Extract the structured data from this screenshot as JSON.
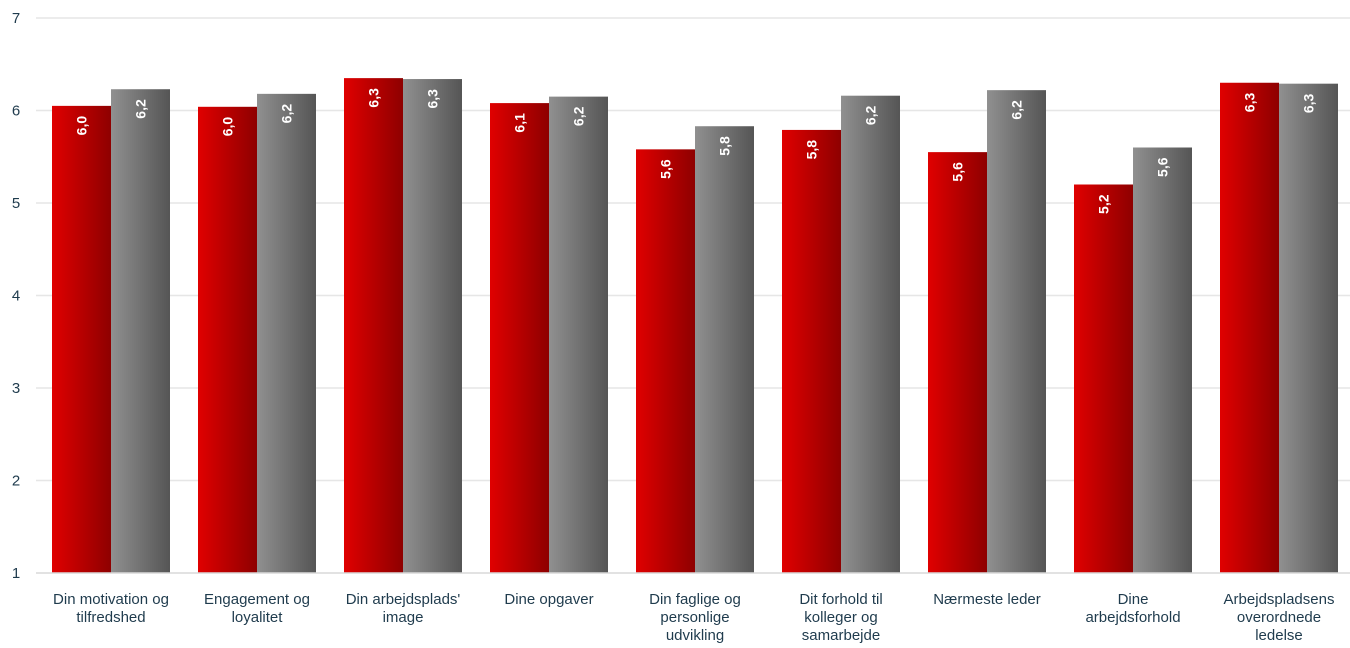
{
  "chart_data": {
    "type": "bar",
    "categories": [
      [
        "Din motivation og",
        "tilfredshed"
      ],
      [
        "Engagement og",
        "loyalitet"
      ],
      [
        "Din arbejdsplads'",
        "image"
      ],
      [
        "Dine opgaver"
      ],
      [
        "Din faglige og",
        "personlige",
        "udvikling"
      ],
      [
        "Dit forhold til",
        "kolleger og",
        "samarbejde"
      ],
      [
        "Nærmeste leder"
      ],
      [
        "Dine",
        "arbejdsforhold"
      ],
      [
        "Arbejdspladsens",
        "overordnede",
        "ledelse"
      ]
    ],
    "series": [
      {
        "color": "#c00000",
        "values": [
          6.05,
          6.04,
          6.35,
          6.08,
          5.58,
          5.79,
          5.55,
          5.2,
          6.3
        ],
        "labels": [
          "6,0",
          "6,0",
          "6,3",
          "6,1",
          "5,6",
          "5,8",
          "5,6",
          "5,2",
          "6,3"
        ]
      },
      {
        "color": "#808080",
        "values": [
          6.23,
          6.18,
          6.34,
          6.15,
          5.83,
          6.16,
          6.22,
          5.6,
          6.29
        ],
        "labels": [
          "6,2",
          "6,2",
          "6,3",
          "6,2",
          "5,8",
          "6,2",
          "6,2",
          "5,6",
          "6,3"
        ]
      }
    ],
    "yticks": [
      "1",
      "2",
      "3",
      "4",
      "5",
      "6",
      "7"
    ],
    "ylim": [
      1,
      7
    ],
    "grid": true,
    "xlabel": "",
    "ylabel": ""
  }
}
